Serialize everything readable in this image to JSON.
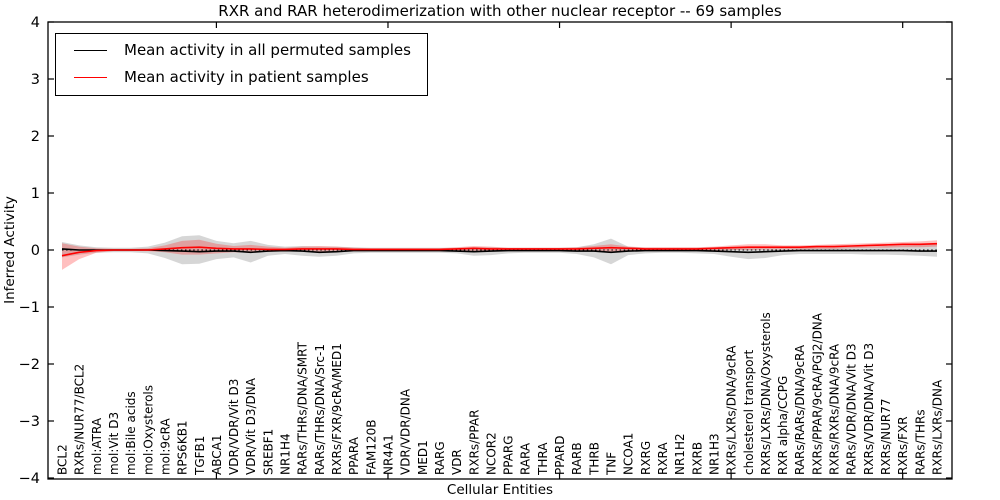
{
  "title": "RXR and RAR heterodimerization with other nuclear receptor -- 69 samples",
  "axes": {
    "xlabel": "Cellular Entities",
    "ylabel": "Inferred Activity"
  },
  "legend": {
    "items": [
      {
        "label": "Mean activity in all permuted samples",
        "color": "#000000"
      },
      {
        "label": "Mean activity in patient samples",
        "color": "#ff0000"
      }
    ]
  },
  "chart_data": {
    "type": "line",
    "title": "RXR and RAR heterodimerization with other nuclear receptor -- 69 samples",
    "xlabel": "Cellular Entities",
    "ylabel": "Inferred Activity",
    "ylim": [
      -4,
      4
    ],
    "grid": false,
    "legend_position": "upper left",
    "zero_reference_line": 0,
    "yticks": [
      {
        "v": 4,
        "label": "4"
      },
      {
        "v": 3,
        "label": "3"
      },
      {
        "v": 2,
        "label": "2"
      },
      {
        "v": 1,
        "label": "1"
      },
      {
        "v": 0,
        "label": "0"
      },
      {
        "v": -1,
        "label": "−1"
      },
      {
        "v": -2,
        "label": "−2"
      },
      {
        "v": -3,
        "label": "−3"
      },
      {
        "v": -4,
        "label": "−4"
      }
    ],
    "x_major_tick_indices": [
      9,
      19,
      29,
      39,
      49
    ],
    "categories": [
      "BCL2",
      "RXRs/NUR77/BCL2",
      "mol:ATRA",
      "mol:Vit D3",
      "mol:Bile acids",
      "mol:Oxysterols",
      "mol:9cRA",
      "RPS6KB1",
      "TGFB1",
      "ABCA1",
      "VDR/VDR/Vit D3",
      "VDR/Vit D3/DNA",
      "SREBF1",
      "NR1H4",
      "RARs/THRs/DNA/SMRT",
      "RARs/THRs/DNA/Src-1",
      "RXRs/FXR/9cRA/MED1",
      "PPARA",
      "FAM120B",
      "NR4A1",
      "VDR/VDR/DNA",
      "MED1",
      "RARG",
      "VDR",
      "RXRs/PPAR",
      "NCOR2",
      "PPARG",
      "RARA",
      "THRA",
      "PPARD",
      "RARB",
      "THRB",
      "TNF",
      "NCOA1",
      "RXRG",
      "RXRA",
      "NR1H2",
      "RXRB",
      "NR1H3",
      "RXRs/LXRs/DNA/9cRA",
      "cholesterol transport",
      "RXRs/LXRs/DNA/Oxysterols",
      "RXR alpha/CCPG",
      "RARs/RARs/DNA/9cRA",
      "RXRs/PPAR/9cRA/PGJ2/DNA",
      "RXRs/RXRs/DNA/9cRA",
      "RARs/VDR/DNA/Vit D3",
      "RXRs/VDR/DNA/Vit D3",
      "RXRs/NUR77",
      "RXRs/FXR",
      "RARs/THRs",
      "RXRs/LXRs/DNA"
    ],
    "series": [
      {
        "name": "Mean activity in all permuted samples",
        "color": "#000000",
        "band_color": "#808080",
        "band_opacity": 0.32,
        "mean": [
          0.02,
          0.0,
          0.0,
          0.0,
          0.0,
          0.0,
          -0.01,
          -0.02,
          -0.03,
          -0.02,
          -0.02,
          -0.04,
          -0.02,
          -0.01,
          -0.02,
          -0.04,
          -0.03,
          -0.01,
          -0.01,
          -0.01,
          -0.01,
          -0.01,
          -0.01,
          -0.02,
          -0.03,
          -0.02,
          -0.01,
          -0.01,
          -0.01,
          -0.01,
          -0.02,
          -0.02,
          -0.04,
          -0.02,
          -0.01,
          -0.01,
          -0.01,
          -0.01,
          -0.02,
          -0.03,
          -0.04,
          -0.03,
          -0.02,
          -0.01,
          -0.01,
          -0.01,
          -0.01,
          -0.01,
          -0.01,
          -0.01,
          -0.02,
          -0.02
        ],
        "band_upper": [
          0.14,
          0.08,
          0.05,
          0.04,
          0.04,
          0.06,
          0.13,
          0.24,
          0.26,
          0.16,
          0.12,
          0.16,
          0.09,
          0.06,
          0.07,
          0.06,
          0.06,
          0.05,
          0.04,
          0.04,
          0.04,
          0.04,
          0.04,
          0.04,
          0.05,
          0.05,
          0.04,
          0.04,
          0.04,
          0.04,
          0.05,
          0.1,
          0.2,
          0.06,
          0.04,
          0.04,
          0.04,
          0.04,
          0.05,
          0.06,
          0.06,
          0.05,
          0.05,
          0.05,
          0.05,
          0.05,
          0.06,
          0.06,
          0.07,
          0.08,
          0.09,
          0.1
        ],
        "band_lower": [
          -0.13,
          -0.08,
          -0.05,
          -0.04,
          -0.04,
          -0.06,
          -0.14,
          -0.25,
          -0.24,
          -0.16,
          -0.13,
          -0.22,
          -0.1,
          -0.07,
          -0.1,
          -0.12,
          -0.1,
          -0.06,
          -0.05,
          -0.05,
          -0.05,
          -0.05,
          -0.05,
          -0.06,
          -0.1,
          -0.09,
          -0.06,
          -0.05,
          -0.05,
          -0.05,
          -0.07,
          -0.13,
          -0.25,
          -0.09,
          -0.06,
          -0.05,
          -0.05,
          -0.06,
          -0.07,
          -0.12,
          -0.16,
          -0.14,
          -0.09,
          -0.07,
          -0.07,
          -0.07,
          -0.07,
          -0.08,
          -0.08,
          -0.09,
          -0.1,
          -0.12
        ]
      },
      {
        "name": "Mean activity in patient samples",
        "color": "#ff0000",
        "band_color": "#ff0000",
        "band_opacity": 0.25,
        "mean": [
          -0.1,
          -0.04,
          -0.01,
          0.0,
          0.0,
          0.0,
          0.02,
          0.04,
          0.05,
          0.03,
          0.02,
          0.02,
          0.01,
          0.01,
          0.02,
          0.02,
          0.02,
          0.01,
          0.01,
          0.01,
          0.01,
          0.01,
          0.01,
          0.02,
          0.03,
          0.02,
          0.02,
          0.02,
          0.02,
          0.02,
          0.02,
          0.03,
          0.04,
          0.03,
          0.02,
          0.02,
          0.02,
          0.02,
          0.03,
          0.04,
          0.05,
          0.05,
          0.05,
          0.05,
          0.06,
          0.06,
          0.07,
          0.08,
          0.09,
          0.1,
          0.1,
          0.11
        ],
        "band_upper": [
          0.12,
          0.06,
          0.03,
          0.02,
          0.02,
          0.03,
          0.08,
          0.16,
          0.18,
          0.11,
          0.07,
          0.09,
          0.06,
          0.04,
          0.06,
          0.07,
          0.06,
          0.04,
          0.03,
          0.03,
          0.03,
          0.03,
          0.03,
          0.05,
          0.07,
          0.06,
          0.04,
          0.04,
          0.04,
          0.04,
          0.05,
          0.07,
          0.1,
          0.06,
          0.05,
          0.05,
          0.05,
          0.05,
          0.06,
          0.08,
          0.1,
          0.1,
          0.08,
          0.08,
          0.09,
          0.1,
          0.11,
          0.12,
          0.13,
          0.14,
          0.15,
          0.17
        ],
        "band_lower": [
          -0.35,
          -0.16,
          -0.05,
          -0.02,
          -0.02,
          -0.02,
          -0.04,
          -0.08,
          -0.08,
          -0.06,
          -0.04,
          -0.05,
          -0.03,
          -0.02,
          -0.02,
          -0.03,
          -0.02,
          -0.01,
          -0.01,
          -0.01,
          -0.01,
          -0.01,
          -0.01,
          -0.01,
          -0.02,
          -0.02,
          -0.01,
          -0.01,
          -0.01,
          -0.01,
          -0.01,
          -0.02,
          -0.03,
          -0.01,
          -0.01,
          -0.01,
          -0.01,
          -0.01,
          -0.01,
          0.0,
          0.0,
          0.01,
          0.01,
          0.01,
          0.02,
          0.02,
          0.03,
          0.04,
          0.04,
          0.05,
          0.05,
          0.06
        ]
      }
    ]
  }
}
